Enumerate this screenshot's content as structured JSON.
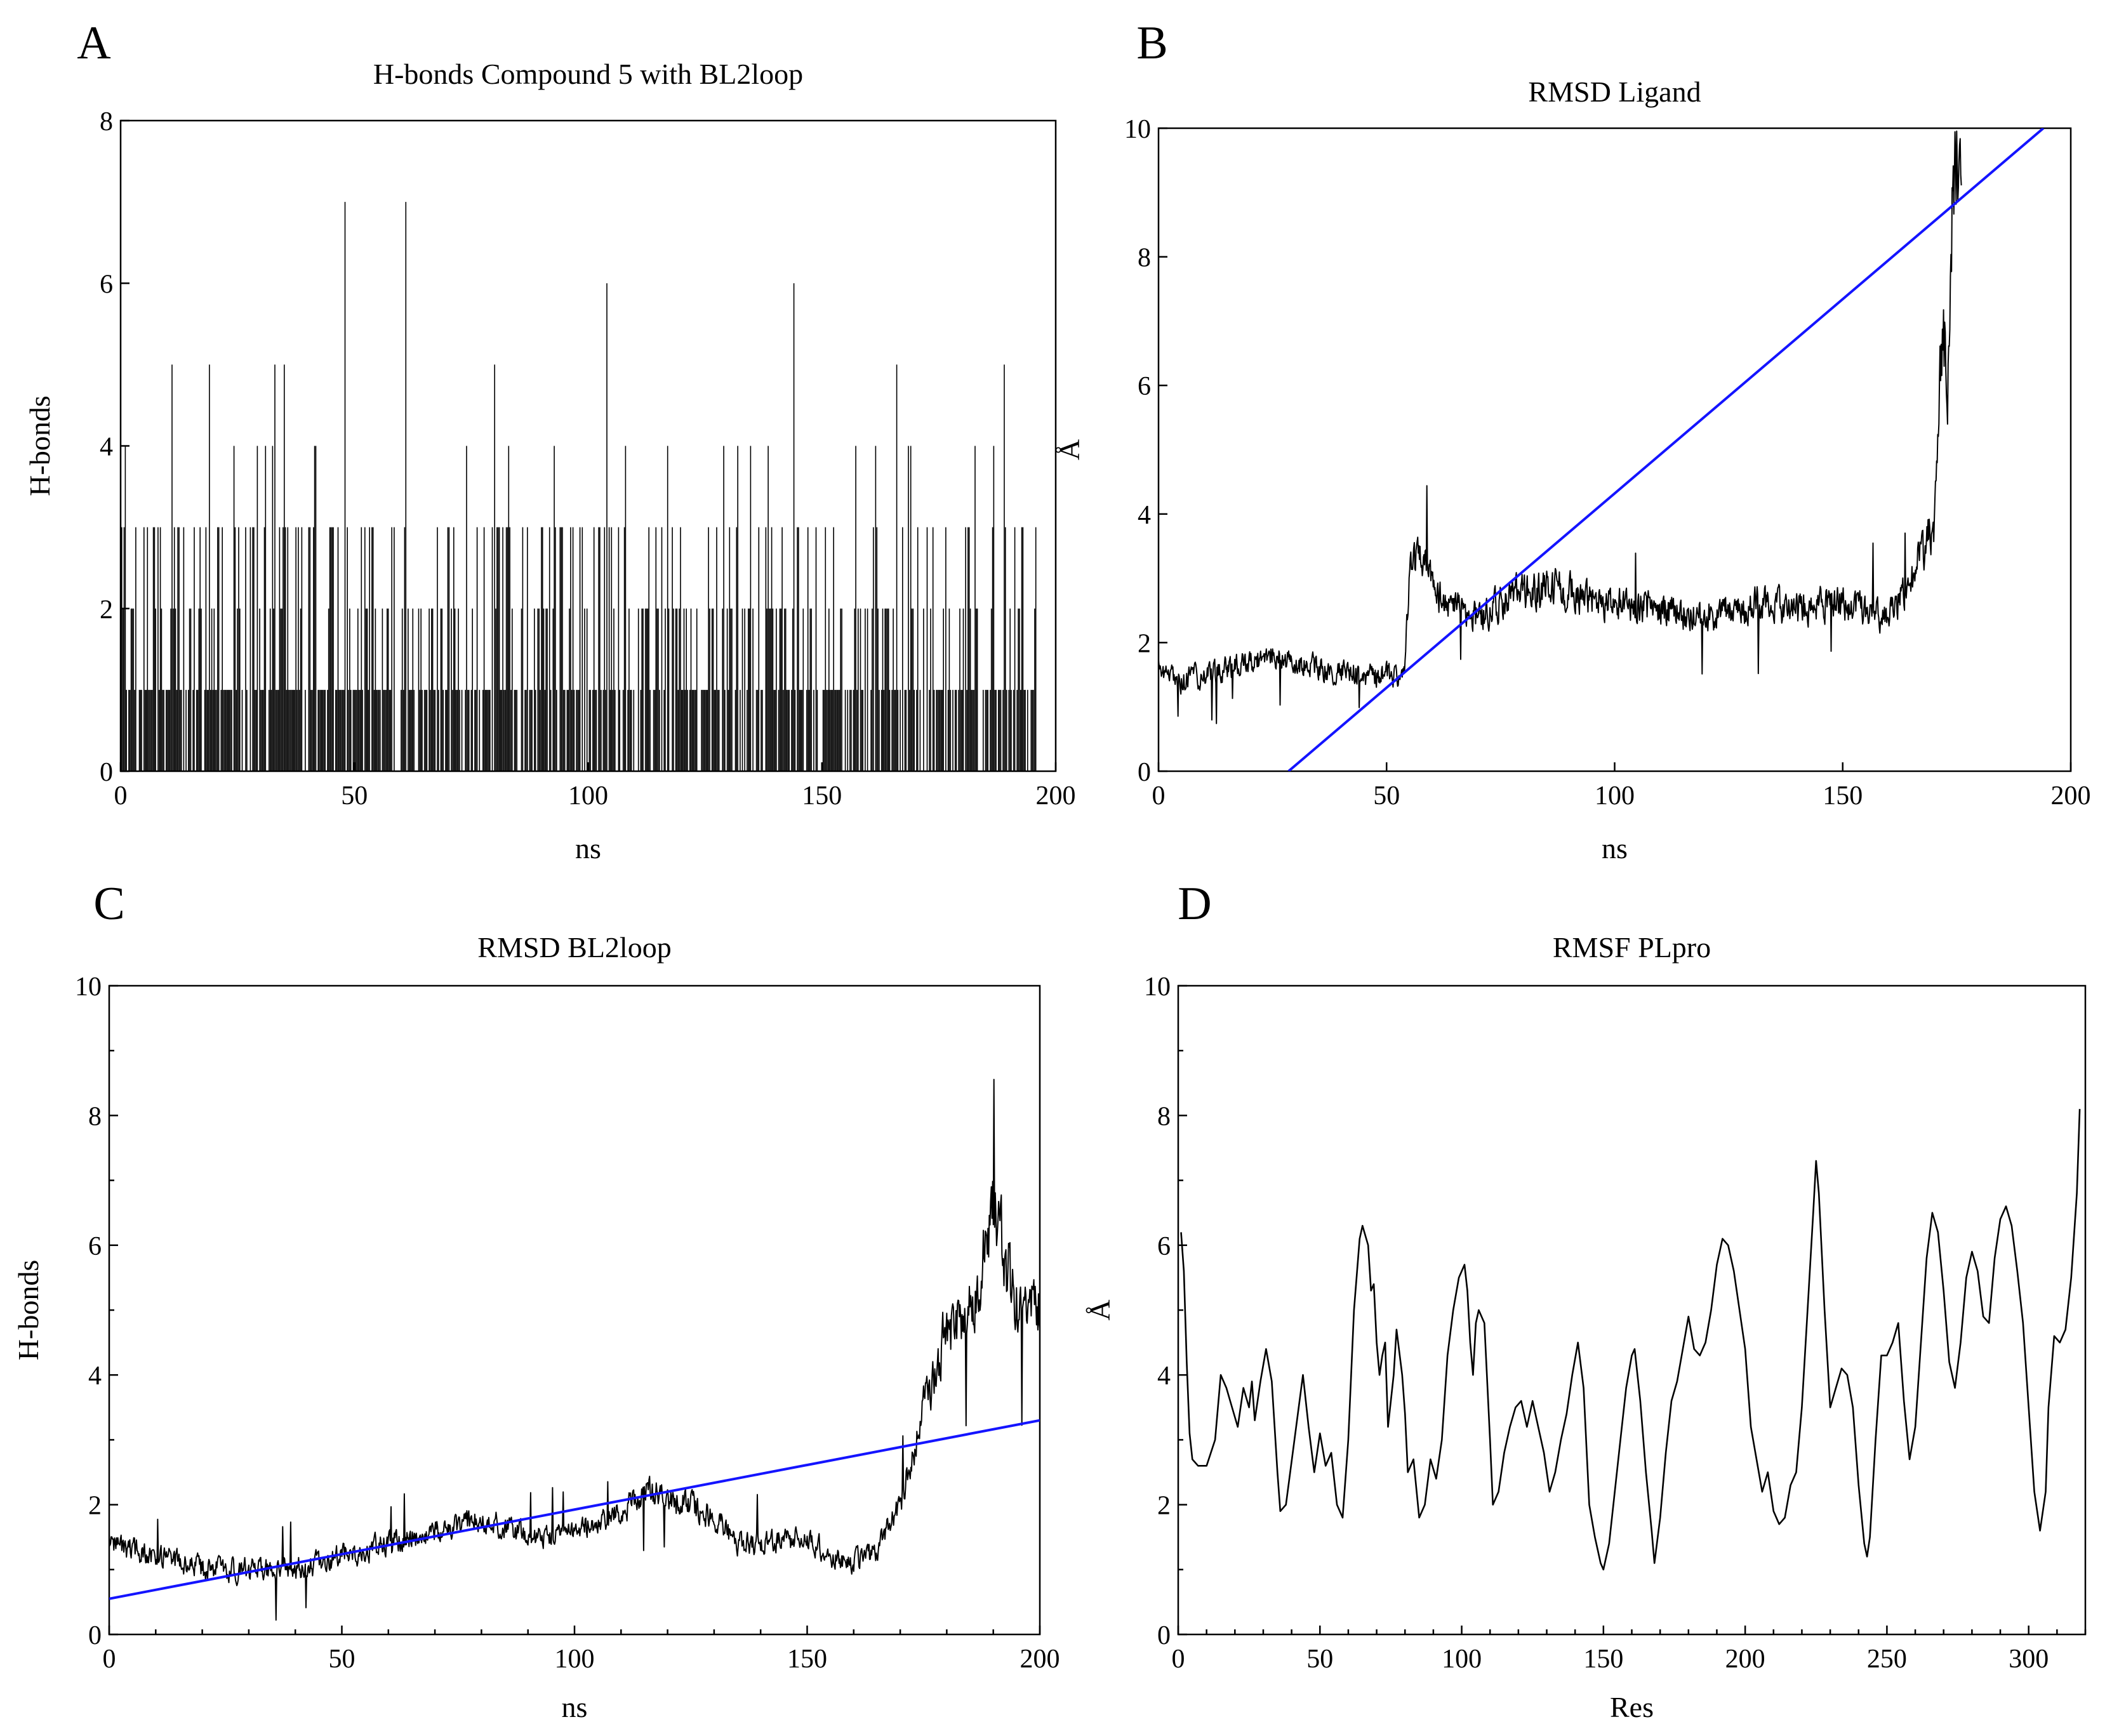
{
  "figure": {
    "panels": [
      "A",
      "B",
      "C",
      "D"
    ]
  },
  "chart_data": [
    {
      "panel": "A",
      "type": "bar",
      "title": "H-bonds Compound 5 with BL2loop",
      "xlabel": "ns",
      "ylabel": "H-bonds",
      "xlim": [
        0,
        200
      ],
      "ylim": [
        0,
        8
      ],
      "xticks": [
        0,
        50,
        100,
        150,
        200
      ],
      "yticks": [
        0,
        2,
        4,
        6,
        8
      ],
      "minor_ticks": false,
      "series": [
        {
          "name": "H-bonds",
          "color": "#000000",
          "sampling_ns": 0.25,
          "x_range": [
            0,
            196
          ],
          "mostly_values": [
            0,
            1
          ],
          "peaks": [
            [
              1,
              4
            ],
            [
              11,
              5
            ],
            [
              19,
              5
            ],
            [
              33,
              5
            ],
            [
              35,
              5
            ],
            [
              48,
              7
            ],
            [
              61,
              7
            ],
            [
              74,
              4
            ],
            [
              80,
              5
            ],
            [
              104,
              6
            ],
            [
              108,
              4
            ],
            [
              144,
              6
            ],
            [
              166,
              5
            ],
            [
              189,
              5
            ]
          ]
        }
      ]
    },
    {
      "panel": "B",
      "type": "line",
      "title": "RMSD Ligand",
      "xlabel": "ns",
      "ylabel": "Å",
      "xlim": [
        0,
        200
      ],
      "ylim": [
        0,
        10
      ],
      "xticks": [
        0,
        50,
        100,
        150,
        200
      ],
      "yticks": [
        0,
        2,
        4,
        6,
        8,
        10
      ],
      "minor_ticks": false,
      "series": [
        {
          "name": "RMSD",
          "color": "#000000",
          "x_range": [
            0,
            176
          ],
          "keypoints": [
            [
              0,
              1.6
            ],
            [
              5,
              1.4
            ],
            [
              15,
              1.6
            ],
            [
              25,
              1.8
            ],
            [
              35,
              1.6
            ],
            [
              45,
              1.5
            ],
            [
              54,
              1.5
            ],
            [
              55,
              3.2
            ],
            [
              60,
              3.2
            ],
            [
              62,
              2.6
            ],
            [
              70,
              2.4
            ],
            [
              80,
              2.8
            ],
            [
              90,
              2.8
            ],
            [
              100,
              2.6
            ],
            [
              110,
              2.5
            ],
            [
              120,
              2.4
            ],
            [
              130,
              2.6
            ],
            [
              140,
              2.5
            ],
            [
              150,
              2.6
            ],
            [
              160,
              2.4
            ],
            [
              165,
              3.0
            ],
            [
              170,
              3.8
            ],
            [
              172,
              7.0
            ],
            [
              173,
              5.9
            ],
            [
              174,
              8.8
            ],
            [
              175,
              9.8
            ],
            [
              176,
              10
            ]
          ]
        },
        {
          "name": "Linear fit",
          "color": "#1414ff",
          "points": [
            [
              28.5,
              0
            ],
            [
              194,
              10
            ]
          ]
        }
      ]
    },
    {
      "panel": "C",
      "type": "line",
      "title": "RMSD BL2loop",
      "xlabel": "ns",
      "ylabel": "H-bonds",
      "xlim": [
        0,
        200
      ],
      "ylim": [
        0,
        10
      ],
      "xticks": [
        0,
        50,
        100,
        150,
        200
      ],
      "yticks": [
        0,
        2,
        4,
        6,
        8,
        10
      ],
      "minor_ticks": true,
      "series": [
        {
          "name": "RMSD",
          "color": "#000000",
          "x_range": [
            0,
            200
          ],
          "keypoints": [
            [
              0,
              1.4
            ],
            [
              5,
              1.3
            ],
            [
              10,
              1.2
            ],
            [
              20,
              1.0
            ],
            [
              30,
              1.0
            ],
            [
              40,
              1.0
            ],
            [
              50,
              1.2
            ],
            [
              60,
              1.4
            ],
            [
              70,
              1.6
            ],
            [
              80,
              1.8
            ],
            [
              90,
              1.5
            ],
            [
              100,
              1.6
            ],
            [
              110,
              1.9
            ],
            [
              115,
              2.2
            ],
            [
              125,
              2.0
            ],
            [
              130,
              1.8
            ],
            [
              135,
              1.4
            ],
            [
              140,
              1.4
            ],
            [
              150,
              1.5
            ],
            [
              155,
              1.2
            ],
            [
              160,
              1.1
            ],
            [
              165,
              1.3
            ],
            [
              170,
              2.0
            ],
            [
              175,
              3.5
            ],
            [
              180,
              4.7
            ],
            [
              185,
              5.0
            ],
            [
              190,
              6.5
            ],
            [
              195,
              5.0
            ],
            [
              200,
              5.0
            ]
          ]
        },
        {
          "name": "Linear fit",
          "color": "#1414ff",
          "points": [
            [
              0,
              0.55
            ],
            [
              200,
              3.3
            ]
          ]
        }
      ]
    },
    {
      "panel": "D",
      "type": "line",
      "title": "RMSF PLpro",
      "xlabel": "Res",
      "ylabel": "Å",
      "xlim": [
        0,
        320
      ],
      "ylim": [
        0,
        10
      ],
      "xticks": [
        0,
        50,
        100,
        150,
        200,
        250,
        300
      ],
      "yticks": [
        0,
        2,
        4,
        6,
        8,
        10
      ],
      "minor_ticks": true,
      "series": [
        {
          "name": "RMSF",
          "color": "#000000",
          "points": [
            [
              1,
              6.2
            ],
            [
              2,
              5.6
            ],
            [
              3,
              4.2
            ],
            [
              4,
              3.1
            ],
            [
              5,
              2.7
            ],
            [
              7,
              2.6
            ],
            [
              10,
              2.6
            ],
            [
              13,
              3.0
            ],
            [
              15,
              4.0
            ],
            [
              17,
              3.8
            ],
            [
              19,
              3.5
            ],
            [
              21,
              3.2
            ],
            [
              23,
              3.8
            ],
            [
              25,
              3.5
            ],
            [
              26,
              3.9
            ],
            [
              27,
              3.3
            ],
            [
              29,
              3.9
            ],
            [
              31,
              4.4
            ],
            [
              33,
              3.9
            ],
            [
              35,
              2.5
            ],
            [
              36,
              1.9
            ],
            [
              38,
              2.0
            ],
            [
              41,
              3.0
            ],
            [
              44,
              4.0
            ],
            [
              46,
              3.2
            ],
            [
              48,
              2.5
            ],
            [
              50,
              3.1
            ],
            [
              52,
              2.6
            ],
            [
              54,
              2.8
            ],
            [
              56,
              2.0
            ],
            [
              58,
              1.8
            ],
            [
              60,
              3.0
            ],
            [
              62,
              5.0
            ],
            [
              64,
              6.1
            ],
            [
              65,
              6.3
            ],
            [
              67,
              6.0
            ],
            [
              68,
              5.3
            ],
            [
              69,
              5.4
            ],
            [
              70,
              4.5
            ],
            [
              71,
              4.0
            ],
            [
              72,
              4.3
            ],
            [
              73,
              4.5
            ],
            [
              74,
              3.2
            ],
            [
              76,
              4.0
            ],
            [
              77,
              4.7
            ],
            [
              79,
              4.0
            ],
            [
              80,
              3.4
            ],
            [
              81,
              2.5
            ],
            [
              83,
              2.7
            ],
            [
              85,
              1.8
            ],
            [
              87,
              2.0
            ],
            [
              89,
              2.7
            ],
            [
              91,
              2.4
            ],
            [
              93,
              3.0
            ],
            [
              95,
              4.3
            ],
            [
              97,
              5.0
            ],
            [
              99,
              5.5
            ],
            [
              101,
              5.7
            ],
            [
              102,
              5.3
            ],
            [
              103,
              4.5
            ],
            [
              104,
              4.0
            ],
            [
              105,
              4.8
            ],
            [
              106,
              5.0
            ],
            [
              108,
              4.8
            ],
            [
              110,
              3.0
            ],
            [
              111,
              2.0
            ],
            [
              113,
              2.2
            ],
            [
              115,
              2.8
            ],
            [
              117,
              3.2
            ],
            [
              119,
              3.5
            ],
            [
              121,
              3.6
            ],
            [
              123,
              3.2
            ],
            [
              125,
              3.6
            ],
            [
              127,
              3.2
            ],
            [
              129,
              2.8
            ],
            [
              131,
              2.2
            ],
            [
              133,
              2.5
            ],
            [
              135,
              3.0
            ],
            [
              137,
              3.4
            ],
            [
              139,
              4.0
            ],
            [
              141,
              4.5
            ],
            [
              143,
              3.8
            ],
            [
              145,
              2.0
            ],
            [
              147,
              1.5
            ],
            [
              149,
              1.1
            ],
            [
              150,
              1.0
            ],
            [
              152,
              1.4
            ],
            [
              154,
              2.2
            ],
            [
              156,
              3.0
            ],
            [
              158,
              3.8
            ],
            [
              160,
              4.3
            ],
            [
              161,
              4.4
            ],
            [
              163,
              3.6
            ],
            [
              165,
              2.5
            ],
            [
              167,
              1.6
            ],
            [
              168,
              1.1
            ],
            [
              170,
              1.8
            ],
            [
              172,
              2.8
            ],
            [
              174,
              3.6
            ],
            [
              176,
              3.9
            ],
            [
              178,
              4.4
            ],
            [
              180,
              4.9
            ],
            [
              182,
              4.4
            ],
            [
              184,
              4.3
            ],
            [
              186,
              4.5
            ],
            [
              188,
              5.0
            ],
            [
              190,
              5.7
            ],
            [
              192,
              6.1
            ],
            [
              194,
              6.0
            ],
            [
              196,
              5.6
            ],
            [
              198,
              5.0
            ],
            [
              200,
              4.4
            ],
            [
              202,
              3.2
            ],
            [
              204,
              2.7
            ],
            [
              206,
              2.2
            ],
            [
              208,
              2.5
            ],
            [
              210,
              1.9
            ],
            [
              212,
              1.7
            ],
            [
              214,
              1.8
            ],
            [
              216,
              2.3
            ],
            [
              218,
              2.5
            ],
            [
              220,
              3.5
            ],
            [
              222,
              5.0
            ],
            [
              224,
              6.5
            ],
            [
              225,
              7.3
            ],
            [
              226,
              6.8
            ],
            [
              228,
              5.0
            ],
            [
              230,
              3.5
            ],
            [
              232,
              3.8
            ],
            [
              234,
              4.1
            ],
            [
              236,
              4.0
            ],
            [
              238,
              3.5
            ],
            [
              240,
              2.3
            ],
            [
              242,
              1.4
            ],
            [
              243,
              1.2
            ],
            [
              244,
              1.5
            ],
            [
              246,
              3.0
            ],
            [
              248,
              4.3
            ],
            [
              250,
              4.3
            ],
            [
              252,
              4.5
            ],
            [
              254,
              4.8
            ],
            [
              256,
              3.6
            ],
            [
              258,
              2.7
            ],
            [
              260,
              3.2
            ],
            [
              262,
              4.5
            ],
            [
              264,
              5.8
            ],
            [
              266,
              6.5
            ],
            [
              268,
              6.2
            ],
            [
              270,
              5.3
            ],
            [
              272,
              4.2
            ],
            [
              274,
              3.8
            ],
            [
              276,
              4.5
            ],
            [
              278,
              5.5
            ],
            [
              280,
              5.9
            ],
            [
              282,
              5.6
            ],
            [
              284,
              4.9
            ],
            [
              286,
              4.8
            ],
            [
              288,
              5.8
            ],
            [
              290,
              6.4
            ],
            [
              292,
              6.6
            ],
            [
              294,
              6.3
            ],
            [
              296,
              5.6
            ],
            [
              298,
              4.8
            ],
            [
              300,
              3.5
            ],
            [
              302,
              2.2
            ],
            [
              304,
              1.6
            ],
            [
              306,
              2.2
            ],
            [
              307,
              3.5
            ],
            [
              309,
              4.6
            ],
            [
              311,
              4.5
            ],
            [
              313,
              4.7
            ],
            [
              315,
              5.5
            ],
            [
              317,
              6.8
            ],
            [
              318,
              8.1
            ]
          ]
        }
      ]
    }
  ]
}
